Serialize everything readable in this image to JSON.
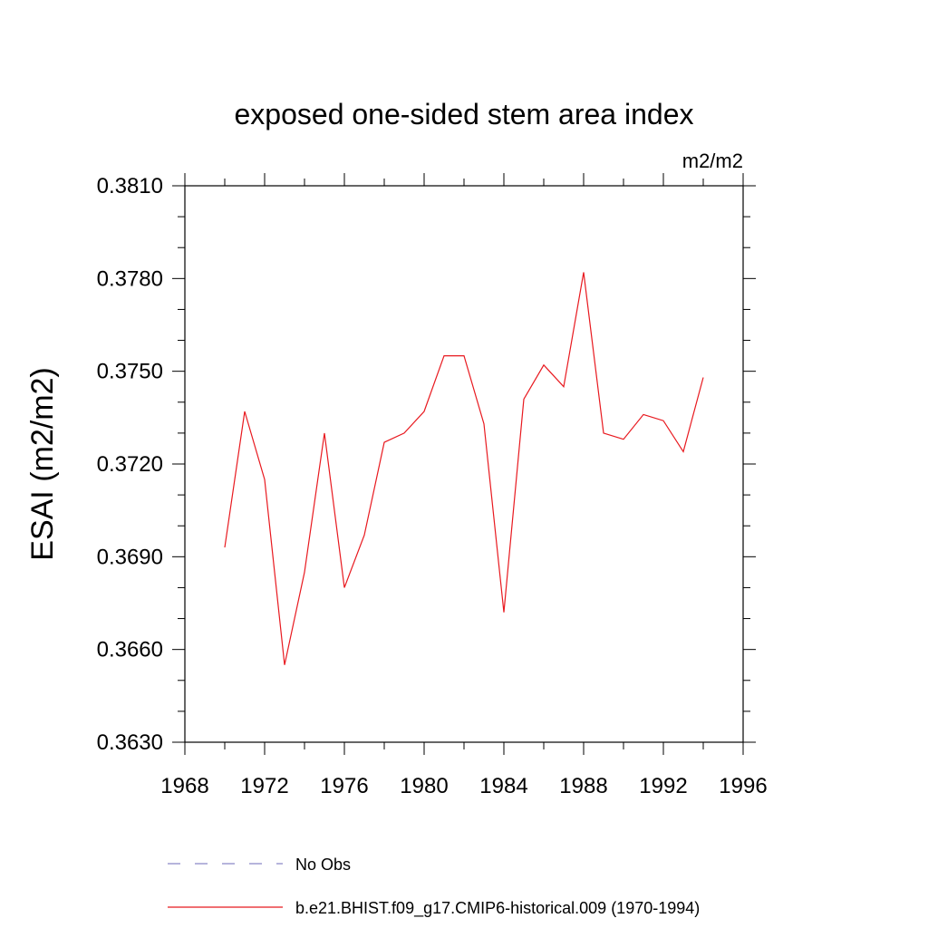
{
  "chart_data": {
    "type": "line",
    "title": "exposed one-sided stem area index",
    "units_label": "m2/m2",
    "ylabel": "ESAI  (m2/m2)",
    "xlabel": "",
    "xlim": [
      1968,
      1996
    ],
    "ylim": [
      0.363,
      0.381
    ],
    "x_ticks": [
      1968,
      1972,
      1976,
      1980,
      1984,
      1988,
      1992,
      1996
    ],
    "x_tick_labels": [
      "1968",
      "1972",
      "1976",
      "1980",
      "1984",
      "1988",
      "1992",
      "1996"
    ],
    "y_ticks": [
      0.363,
      0.366,
      0.369,
      0.372,
      0.375,
      0.378,
      0.381
    ],
    "y_tick_labels": [
      "0.3630",
      "0.3660",
      "0.3690",
      "0.3720",
      "0.3750",
      "0.3780",
      "0.3810"
    ],
    "grid": false,
    "legend_placement": "bottom",
    "series": [
      {
        "name": "No Obs",
        "color": "#8a86c8",
        "style": "dashed",
        "x": [],
        "y": []
      },
      {
        "name": "b.e21.BHIST.f09_g17.CMIP6-historical.009 (1970-1994)",
        "color": "#e8191f",
        "style": "solid",
        "x": [
          1970,
          1971,
          1972,
          1973,
          1974,
          1975,
          1976,
          1977,
          1978,
          1979,
          1980,
          1981,
          1982,
          1983,
          1984,
          1985,
          1986,
          1987,
          1988,
          1989,
          1990,
          1991,
          1992,
          1993,
          1994
        ],
        "y": [
          0.3693,
          0.3737,
          0.3715,
          0.3655,
          0.3685,
          0.373,
          0.368,
          0.3697,
          0.3727,
          0.373,
          0.3737,
          0.3755,
          0.3755,
          0.3733,
          0.3672,
          0.3741,
          0.3752,
          0.3745,
          0.3782,
          0.373,
          0.3728,
          0.3736,
          0.3734,
          0.3724,
          0.3748
        ]
      }
    ]
  }
}
